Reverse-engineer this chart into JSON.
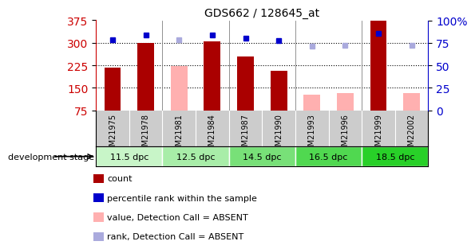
{
  "title": "GDS662 / 128645_at",
  "samples": [
    "GSM21975",
    "GSM21978",
    "GSM21981",
    "GSM21984",
    "GSM21987",
    "GSM21990",
    "GSM21993",
    "GSM21996",
    "GSM21999",
    "GSM22002"
  ],
  "count_values": [
    218,
    300,
    null,
    305,
    255,
    208,
    null,
    null,
    375,
    null
  ],
  "count_absent": [
    null,
    null,
    222,
    null,
    null,
    null,
    128,
    133,
    null,
    133
  ],
  "rank_present": [
    310,
    325,
    null,
    325,
    315,
    307,
    null,
    null,
    330,
    null
  ],
  "rank_absent": [
    null,
    null,
    311,
    null,
    null,
    null,
    289,
    292,
    null,
    292
  ],
  "ylim_left": [
    75,
    375
  ],
  "ylim_right": [
    0,
    100
  ],
  "yticks_left": [
    75,
    150,
    225,
    300,
    375
  ],
  "yticks_right": [
    0,
    25,
    50,
    75,
    100
  ],
  "stage_groups": [
    {
      "label": "11.5 dpc",
      "indices": [
        0,
        1
      ],
      "color": "#c8f5c8"
    },
    {
      "label": "12.5 dpc",
      "indices": [
        2,
        3
      ],
      "color": "#a8eda8"
    },
    {
      "label": "14.5 dpc",
      "indices": [
        4,
        5
      ],
      "color": "#78e078"
    },
    {
      "label": "16.5 dpc",
      "indices": [
        6,
        7
      ],
      "color": "#50d850"
    },
    {
      "label": "18.5 dpc",
      "indices": [
        8,
        9
      ],
      "color": "#28d028"
    }
  ],
  "bar_width": 0.5,
  "color_count_present": "#aa0000",
  "color_count_absent": "#ffb0b0",
  "color_rank_present": "#0000cc",
  "color_rank_absent": "#aaaadd",
  "left_axis_color": "#cc0000",
  "right_axis_color": "#0000cc",
  "sample_row_color": "#cccccc",
  "legend_items": [
    {
      "color": "#aa0000",
      "label": "count"
    },
    {
      "color": "#0000cc",
      "label": "percentile rank within the sample"
    },
    {
      "color": "#ffb0b0",
      "label": "value, Detection Call = ABSENT"
    },
    {
      "color": "#aaaadd",
      "label": "rank, Detection Call = ABSENT"
    }
  ]
}
